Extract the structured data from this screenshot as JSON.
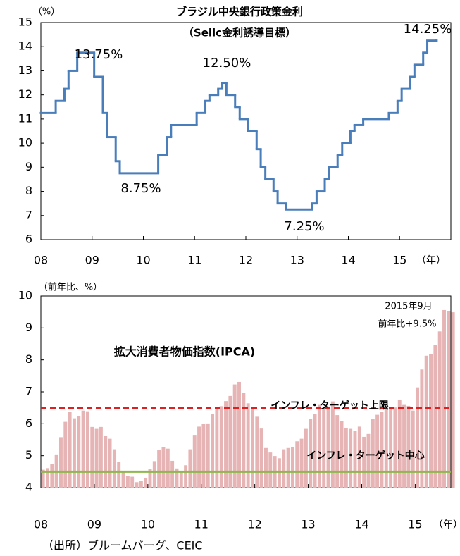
{
  "chart_data": [
    {
      "type": "step-line",
      "title": "ブラジル中央銀行政策金利",
      "subtitle": "（Selic金利誘導目標）",
      "y_label": "（%）",
      "x_label": "（年）",
      "color": "#4a7ebb",
      "x": [
        2008.0,
        2008.29,
        2008.46,
        2008.54,
        2008.71,
        2009.04,
        2009.21,
        2009.29,
        2009.46,
        2009.54,
        2010.29,
        2010.46,
        2010.54,
        2011.04,
        2011.21,
        2011.29,
        2011.46,
        2011.54,
        2011.62,
        2011.79,
        2011.88,
        2012.04,
        2012.21,
        2012.29,
        2012.38,
        2012.54,
        2012.62,
        2012.79,
        2013.29,
        2013.38,
        2013.54,
        2013.62,
        2013.79,
        2013.88,
        2014.04,
        2014.12,
        2014.29,
        2014.79,
        2014.96,
        2015.04,
        2015.21,
        2015.29,
        2015.46,
        2015.54,
        2015.71
      ],
      "values": [
        11.25,
        11.75,
        12.25,
        13.0,
        13.75,
        12.75,
        11.25,
        10.25,
        9.25,
        8.75,
        9.5,
        10.25,
        10.75,
        11.25,
        11.75,
        12.0,
        12.25,
        12.5,
        12.0,
        11.5,
        11.0,
        10.5,
        9.75,
        9.0,
        8.5,
        8.0,
        7.5,
        7.25,
        7.5,
        8.0,
        8.5,
        9.0,
        9.5,
        10.0,
        10.5,
        10.75,
        11.0,
        11.25,
        11.75,
        12.25,
        12.75,
        13.25,
        13.75,
        14.25,
        14.25
      ],
      "xlim": [
        2008,
        2016
      ],
      "xticks": [
        {
          "value": 2008,
          "label": "08"
        },
        {
          "value": 2009,
          "label": "09"
        },
        {
          "value": 2010,
          "label": "10"
        },
        {
          "value": 2011,
          "label": "11"
        },
        {
          "value": 2012,
          "label": "12"
        },
        {
          "value": 2013,
          "label": "13"
        },
        {
          "value": 2014,
          "label": "14"
        },
        {
          "value": 2015,
          "label": "15"
        }
      ],
      "ylim": [
        6,
        15
      ],
      "yticks": [
        6,
        7,
        8,
        9,
        10,
        11,
        12,
        13,
        14,
        15
      ],
      "annotations": [
        "13.75%",
        "12.50%",
        "8.75%",
        "7.25%",
        "14.25%"
      ]
    },
    {
      "type": "bar",
      "title": "拡大消費者物価指数(IPCA)",
      "y_label": "（前年比、%）",
      "x_label": "（年）",
      "color": "#e6b4b4",
      "categories": [
        null,
        null,
        null,
        null,
        null,
        null,
        null,
        null,
        null,
        null,
        null,
        null,
        null,
        null,
        null,
        null,
        null,
        null,
        null,
        null,
        null,
        null,
        null,
        null,
        null,
        null,
        null,
        null,
        null,
        null,
        null,
        null,
        null,
        null,
        null,
        null,
        null,
        null,
        null,
        null,
        null,
        null,
        null,
        null,
        null,
        null,
        null,
        null,
        null,
        null,
        null,
        null,
        null,
        null,
        null,
        null,
        null,
        null,
        null,
        null,
        null,
        null,
        null,
        null,
        null,
        null,
        null,
        null,
        null,
        null,
        null,
        null,
        null,
        null,
        null,
        null,
        null,
        null,
        null,
        null,
        null,
        null,
        null,
        null,
        null,
        null,
        null,
        null,
        null,
        null,
        null,
        null,
        null
      ],
      "values": [
        4.56,
        4.61,
        4.73,
        5.04,
        5.58,
        6.06,
        6.37,
        6.17,
        6.25,
        6.41,
        6.39,
        5.9,
        5.84,
        5.9,
        5.61,
        5.53,
        5.2,
        4.8,
        4.5,
        4.36,
        4.34,
        4.17,
        4.22,
        4.31,
        4.59,
        4.83,
        5.17,
        5.26,
        5.22,
        4.84,
        4.6,
        4.49,
        4.7,
        5.2,
        5.63,
        5.91,
        5.99,
        6.01,
        6.3,
        6.51,
        6.55,
        6.71,
        6.87,
        7.23,
        7.31,
        6.97,
        6.64,
        6.5,
        6.22,
        5.85,
        5.24,
        5.1,
        4.99,
        4.92,
        5.2,
        5.24,
        5.28,
        5.45,
        5.53,
        5.84,
        6.15,
        6.31,
        6.59,
        6.49,
        6.5,
        6.7,
        6.27,
        6.09,
        5.86,
        5.84,
        5.77,
        5.91,
        5.59,
        5.68,
        6.15,
        6.28,
        6.37,
        6.52,
        6.5,
        6.51,
        6.75,
        6.59,
        6.56,
        6.41,
        7.14,
        7.7,
        8.13,
        8.17,
        8.47,
        8.89,
        9.56,
        9.53,
        9.49
      ],
      "xlim": [
        0,
        92
      ],
      "xticks": [
        {
          "value": 0,
          "label": "08"
        },
        {
          "value": 12,
          "label": "09"
        },
        {
          "value": 24,
          "label": "10"
        },
        {
          "value": 36,
          "label": "11"
        },
        {
          "value": 48,
          "label": "12"
        },
        {
          "value": 60,
          "label": "13"
        },
        {
          "value": 72,
          "label": "14"
        },
        {
          "value": 84,
          "label": "15"
        }
      ],
      "ylim": [
        4,
        10
      ],
      "yticks": [
        4,
        5,
        6,
        7,
        8,
        9,
        10
      ],
      "reference_lines": [
        {
          "value": 6.5,
          "label": "インフレ・ターゲット上限",
          "color": "#e02020",
          "dash": true
        },
        {
          "value": 4.5,
          "label": "インフレ・ターゲット中心",
          "color": "#8db84a",
          "dash": false
        }
      ],
      "annotations": [
        "2015年9月",
        "前年比+9.5%"
      ]
    }
  ],
  "source": "（出所）ブルームバーグ、CEIC"
}
